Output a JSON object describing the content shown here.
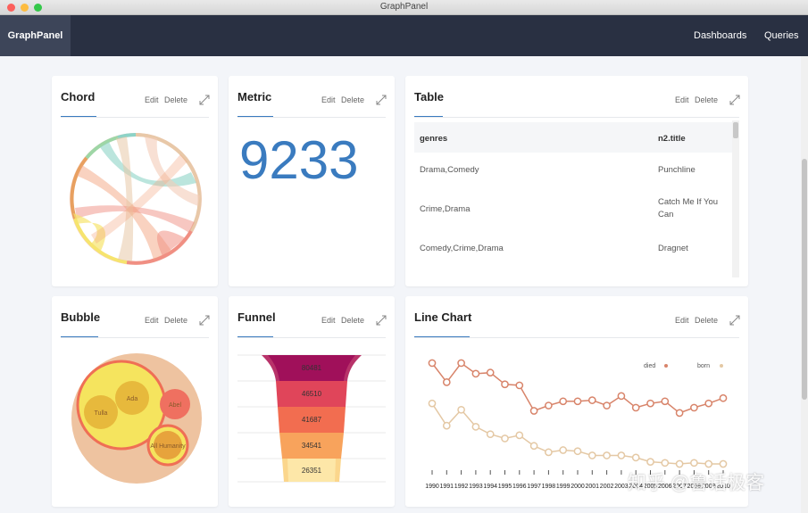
{
  "window": {
    "title": "GraphPanel"
  },
  "navbar": {
    "brand": "GraphPanel",
    "links": [
      "Dashboards",
      "Queries"
    ]
  },
  "actions": {
    "edit": "Edit",
    "delete": "Delete"
  },
  "cards": {
    "chord": {
      "title": "Chord",
      "colors": [
        "#f08f83",
        "#8dd3c7",
        "#f6e46e",
        "#e8c8a8",
        "#9ed6a6",
        "#f4a582"
      ]
    },
    "metric": {
      "title": "Metric",
      "value": "9233",
      "color": "#3a7bbf"
    },
    "table": {
      "title": "Table",
      "columns": [
        "genres",
        "n2.title"
      ],
      "rows": [
        [
          "Drama,Comedy",
          "Punchline"
        ],
        [
          "Crime,Drama",
          "Catch Me If You Can"
        ],
        [
          "Comedy,Crime,Drama",
          "Dragnet"
        ]
      ]
    },
    "bubble": {
      "title": "Bubble",
      "labels": [
        "Ada",
        "Tulla",
        "Abel",
        "All Humanity"
      ]
    },
    "funnel": {
      "title": "Funnel",
      "values": [
        "80481",
        "46510",
        "41687",
        "34541",
        "26351"
      ]
    },
    "line": {
      "title": "Line Chart"
    }
  },
  "chart_data": {
    "type": "line",
    "x": [
      "1990",
      "1991",
      "1992",
      "1993",
      "1994",
      "1995",
      "1996",
      "1997",
      "1998",
      "1999",
      "2000",
      "2001",
      "2002",
      "2003",
      "2004",
      "2005",
      "2006",
      "2007",
      "2008",
      "2009",
      "2010"
    ],
    "series": [
      {
        "name": "died",
        "color": "#d8846a",
        "values": [
          95,
          77,
          95,
          85,
          86,
          75,
          74,
          50,
          55,
          59,
          59,
          60,
          55,
          64,
          53,
          57,
          59,
          48,
          53,
          57,
          62
        ]
      },
      {
        "name": "born",
        "color": "#e4c8a4",
        "values": [
          57,
          36,
          51,
          35,
          28,
          24,
          27,
          17,
          11,
          13,
          12,
          8,
          8,
          8,
          6,
          2,
          1,
          0,
          1,
          0,
          0
        ]
      }
    ],
    "legend": "top-right"
  },
  "watermark": "知乎 @鲁话极客"
}
